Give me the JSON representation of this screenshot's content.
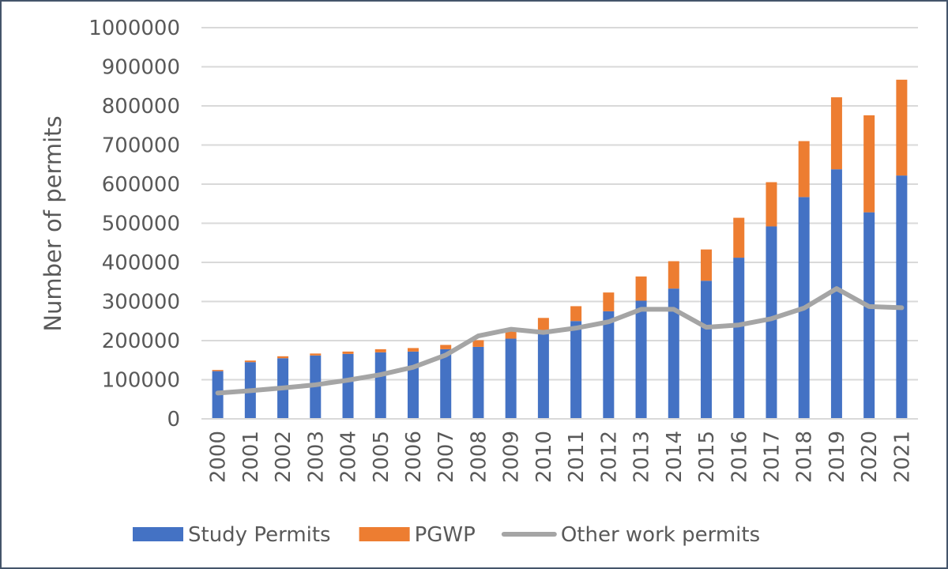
{
  "chart_data": {
    "type": "bar",
    "stacked": true,
    "categories": [
      "2000",
      "2001",
      "2002",
      "2003",
      "2004",
      "2005",
      "2006",
      "2007",
      "2008",
      "2009",
      "2010",
      "2011",
      "2012",
      "2013",
      "2014",
      "2015",
      "2016",
      "2017",
      "2018",
      "2019",
      "2020",
      "2021"
    ],
    "series": [
      {
        "name": "Study Permits",
        "kind": "bar",
        "color": "#4472c4",
        "values": [
          122000,
          145000,
          155000,
          162000,
          166000,
          170000,
          172000,
          178000,
          184000,
          205000,
          225000,
          250000,
          275000,
          302000,
          333000,
          353000,
          412000,
          492000,
          567000,
          638000,
          528000,
          622000
        ]
      },
      {
        "name": "PGWP",
        "kind": "bar",
        "color": "#ed7d31",
        "values": [
          3000,
          4000,
          5000,
          5000,
          6000,
          8000,
          9000,
          11000,
          17000,
          20000,
          33000,
          38000,
          48000,
          62000,
          70000,
          80000,
          102000,
          113000,
          143000,
          184000,
          248000,
          245000
        ]
      },
      {
        "name": "Other work permits",
        "kind": "line",
        "color": "#a5a5a5",
        "values": [
          66000,
          72000,
          79000,
          87000,
          99000,
          113000,
          132000,
          163000,
          212000,
          229000,
          221000,
          232000,
          248000,
          280000,
          280000,
          234000,
          240000,
          256000,
          283000,
          333000,
          287000,
          284000
        ]
      }
    ],
    "ylabel": "Number of permits",
    "xlabel": "",
    "ylim": [
      0,
      1000000
    ],
    "yticks": [
      "0",
      "100000",
      "200000",
      "300000",
      "400000",
      "500000",
      "600000",
      "700000",
      "800000",
      "900000",
      "1000000"
    ],
    "grid": true,
    "legend_position": "bottom"
  }
}
